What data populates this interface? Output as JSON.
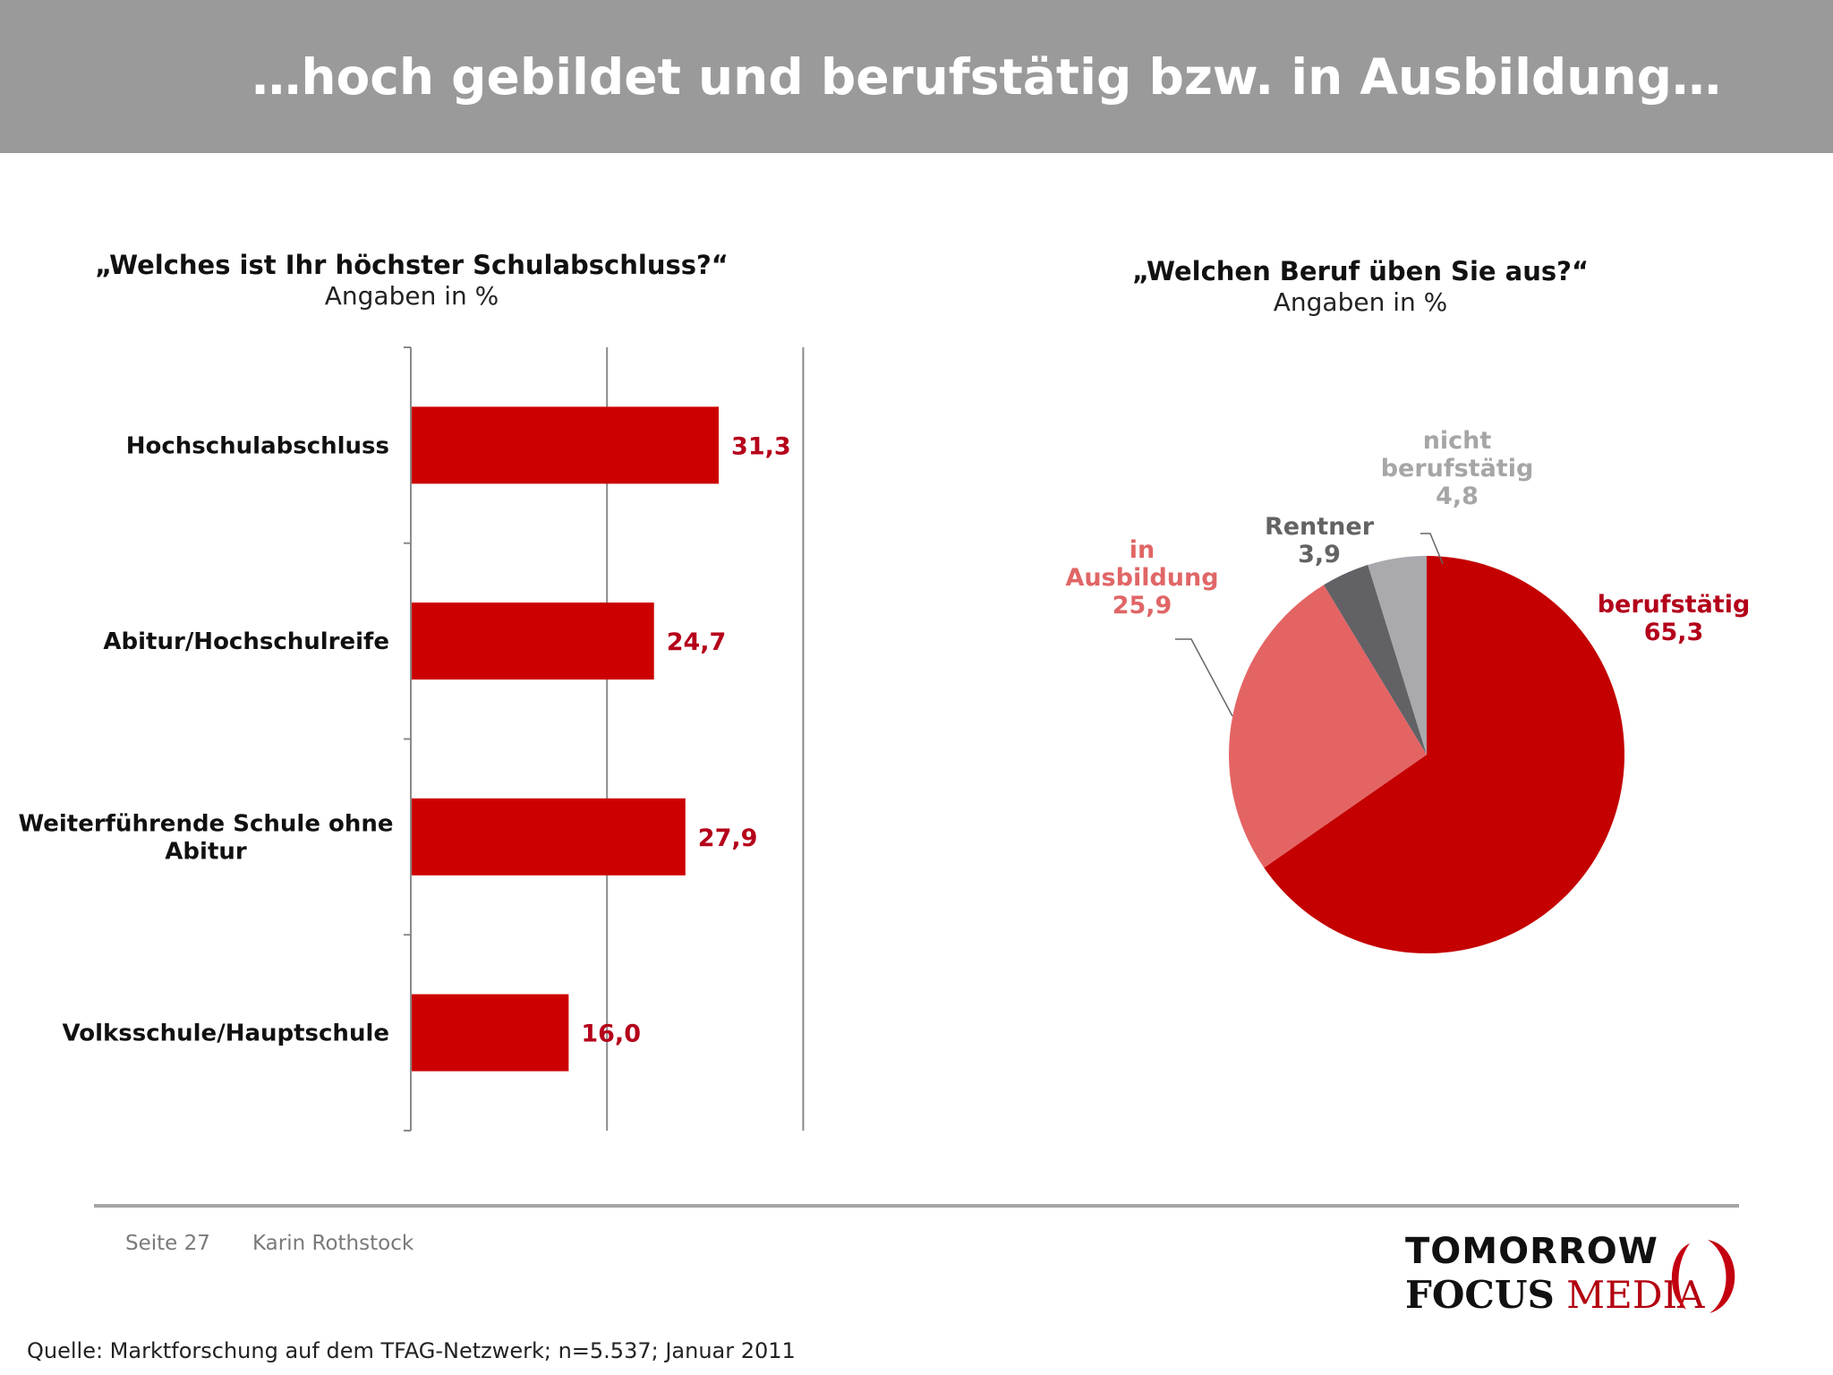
{
  "header": {
    "title": "…hoch gebildet und berufstätig bzw. in Ausbildung…"
  },
  "chart_data": [
    {
      "type": "bar",
      "orientation": "horizontal",
      "title": "„Welches ist Ihr höchster Schulabschluss?“",
      "subtitle": "Angaben in %",
      "categories": [
        "Hochschulabschluss",
        "Abitur/Hochschulreife",
        "Weiterführende Schule ohne Abitur",
        "Volksschule/Hauptschule"
      ],
      "values": [
        31.3,
        24.7,
        27.9,
        16.0
      ],
      "value_labels": [
        "31,3",
        "24,7",
        "27,9",
        "16,0"
      ],
      "xlim": [
        0,
        40
      ],
      "grid": true,
      "bar_color": "#cc0000",
      "label_color": "#b5001a"
    },
    {
      "type": "pie",
      "title": "„Welchen Beruf üben Sie aus?“",
      "subtitle": "Angaben in %",
      "slices": [
        {
          "label": "berufstätig",
          "value": 65.3,
          "value_label": "65,3",
          "color": "#c40000",
          "label_color": "#b3001a"
        },
        {
          "label": "in Ausbildung",
          "value": 25.9,
          "value_label": "25,9",
          "color": "#e46464",
          "label_color": "#e06666"
        },
        {
          "label": "Rentner",
          "value": 3.9,
          "value_label": "3,9",
          "color": "#616166",
          "label_color": "#636363"
        },
        {
          "label": "nicht berufstätig",
          "value": 4.8,
          "value_label": "4,8",
          "color": "#aaa9ad",
          "label_color": "#a6a6a6"
        }
      ]
    }
  ],
  "footer": {
    "page": "Seite 27",
    "author": "Karin Rothstock",
    "source": "Quelle: Marktforschung auf dem TFAG-Netzwerk; n=5.537; Januar 2011"
  },
  "logo": {
    "line1": "TOMORROW",
    "focus": "FOCUS",
    "media": "MEDIA"
  }
}
